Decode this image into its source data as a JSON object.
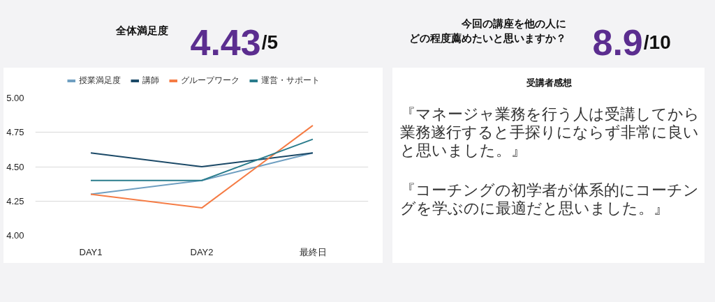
{
  "chart_data": [
    {
      "type": "other",
      "title": "全体満足度",
      "annotations": [
        "4.43",
        "/5"
      ],
      "colors": [
        "#5b2d8f",
        "#111111"
      ]
    },
    {
      "type": "other",
      "title": "今回の講座を他の人にどの程度薦めたいと思いますか？",
      "annotations": [
        "8.9",
        "/10"
      ],
      "colors": [
        "#5b2d8f",
        "#111111"
      ]
    },
    {
      "type": "line",
      "categories": [
        "DAY1",
        "DAY2",
        "最終日"
      ],
      "series": [
        {
          "name": "授業満足度",
          "color": "#6f9fc1",
          "values": [
            4.3,
            4.4,
            4.6
          ]
        },
        {
          "name": "講師",
          "color": "#1b4967",
          "values": [
            4.6,
            4.5,
            4.6
          ]
        },
        {
          "name": "グループワーク",
          "color": "#f57c45",
          "values": [
            4.3,
            4.2,
            4.8
          ]
        },
        {
          "name": "運営・サポート",
          "color": "#2a7c8c",
          "values": [
            4.4,
            4.4,
            4.7
          ]
        }
      ],
      "ylim": [
        4,
        5
      ],
      "yticks": [
        {
          "value": 4,
          "label": "4.00"
        },
        4.25,
        {
          "value": 4.5,
          "label": "4.50"
        },
        4.75,
        {
          "value": 5,
          "label": "5.00"
        }
      ],
      "grid": "y",
      "legend": "top"
    },
    {
      "type": "other",
      "title": "受講者感想",
      "annotations": [
        "『マネージャ業務を行う人は受講してから業務遂行すると手探りにならず非常に良いと思いました。』",
        "『コーチングの初学者が体系的にコーチングを学ぶのに最適だと思いました。』"
      ]
    }
  ]
}
